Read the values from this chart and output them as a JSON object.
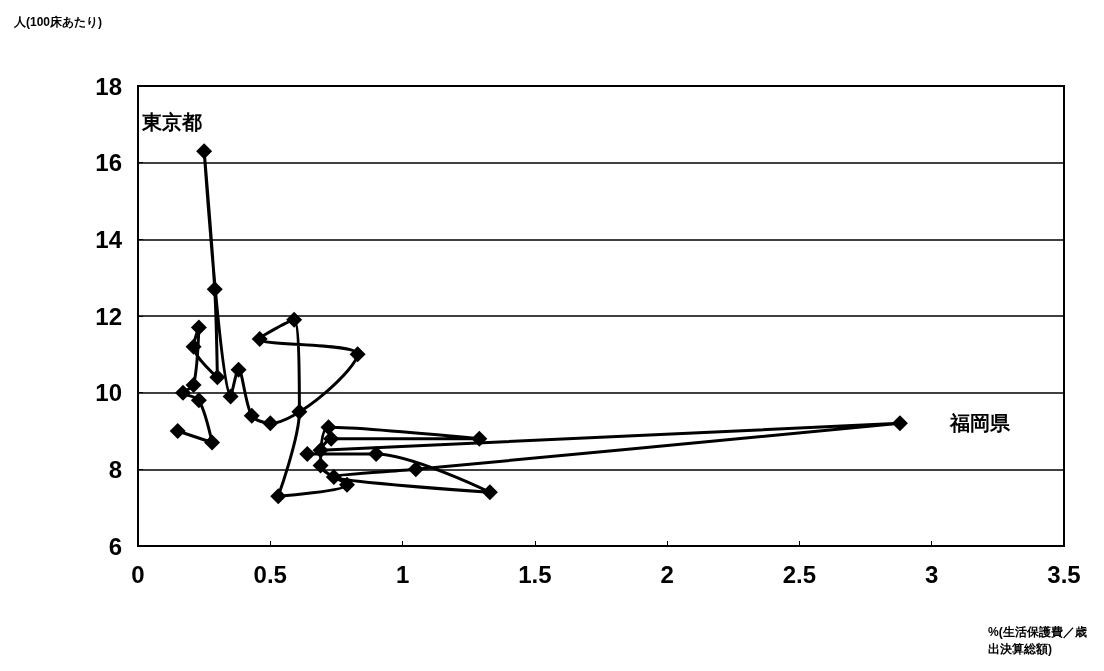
{
  "chart_data": {
    "type": "line",
    "ylabel": "人(100床あたり)",
    "xlabel": "%(生活保護費／歳出決算総額)",
    "series": [
      {
        "color": "#000000",
        "x": [
          0.15,
          0.28,
          0.23,
          0.17,
          0.21,
          0.23,
          0.21,
          0.3,
          0.29,
          0.25,
          0.35,
          0.38,
          0.43,
          0.5,
          0.83,
          0.46,
          0.59,
          0.61,
          0.53,
          0.79,
          0.69,
          0.72,
          1.29,
          0.73,
          0.69,
          2.88,
          1.05,
          0.74,
          1.33,
          0.9,
          0.64
        ],
        "values": [
          9.0,
          8.7,
          9.8,
          10.0,
          10.2,
          11.7,
          11.2,
          10.4,
          12.7,
          16.3,
          9.9,
          10.6,
          9.4,
          9.2,
          11.0,
          11.4,
          11.9,
          9.5,
          7.3,
          7.6,
          8.1,
          9.1,
          8.8,
          8.8,
          8.5,
          9.2,
          8.0,
          7.8,
          7.4,
          8.4,
          8.4
        ]
      }
    ],
    "xlim": [
      0,
      3.5
    ],
    "xticks": [
      0,
      0.5,
      1,
      1.5,
      2,
      2.5,
      3,
      3.5
    ],
    "ylim": [
      6,
      18
    ],
    "yticks": [
      6,
      8,
      10,
      12,
      14,
      16,
      18
    ],
    "annotations": [
      {
        "text": "東京都",
        "x": 0.25,
        "y": 16.3
      },
      {
        "text": "福岡県",
        "x": 2.88,
        "y": 9.2
      }
    ],
    "grid": "y",
    "marker": "diamond",
    "line_style": "solid"
  }
}
